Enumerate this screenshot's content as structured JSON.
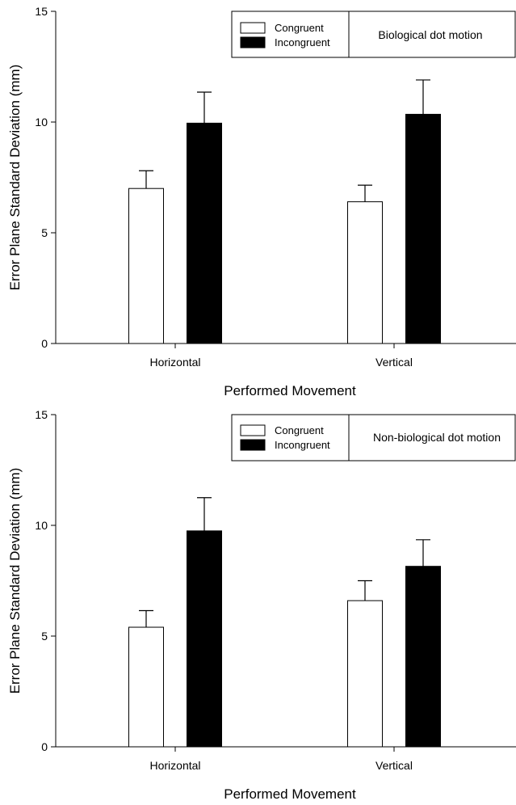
{
  "chart_data": [
    {
      "type": "bar",
      "title": "Biological dot motion",
      "xlabel": "Performed Movement",
      "ylabel": "Error Plane Standard Deviation (mm)",
      "categories": [
        "Horizontal",
        "Vertical"
      ],
      "ylim": [
        0,
        15
      ],
      "yticks": [
        0,
        5,
        10,
        15
      ],
      "grid": false,
      "legend_position": "top-center",
      "series": [
        {
          "name": "Congruent",
          "color": "#ffffff",
          "values": [
            7.0,
            6.4
          ],
          "errors": [
            0.8,
            0.75
          ]
        },
        {
          "name": "Incongruent",
          "color": "#000000",
          "values": [
            9.95,
            10.35
          ],
          "errors": [
            1.4,
            1.55
          ]
        }
      ]
    },
    {
      "type": "bar",
      "title": "Non-biological dot motion",
      "xlabel": "Performed Movement",
      "ylabel": "Error Plane Standard Deviation (mm)",
      "categories": [
        "Horizontal",
        "Vertical"
      ],
      "ylim": [
        0,
        15
      ],
      "yticks": [
        0,
        5,
        10,
        15
      ],
      "grid": false,
      "legend_position": "top-center",
      "series": [
        {
          "name": "Congruent",
          "color": "#ffffff",
          "values": [
            5.4,
            6.6
          ],
          "errors": [
            0.75,
            0.9
          ]
        },
        {
          "name": "Incongruent",
          "color": "#000000",
          "values": [
            9.75,
            8.15
          ],
          "errors": [
            1.5,
            1.2
          ]
        }
      ]
    }
  ]
}
